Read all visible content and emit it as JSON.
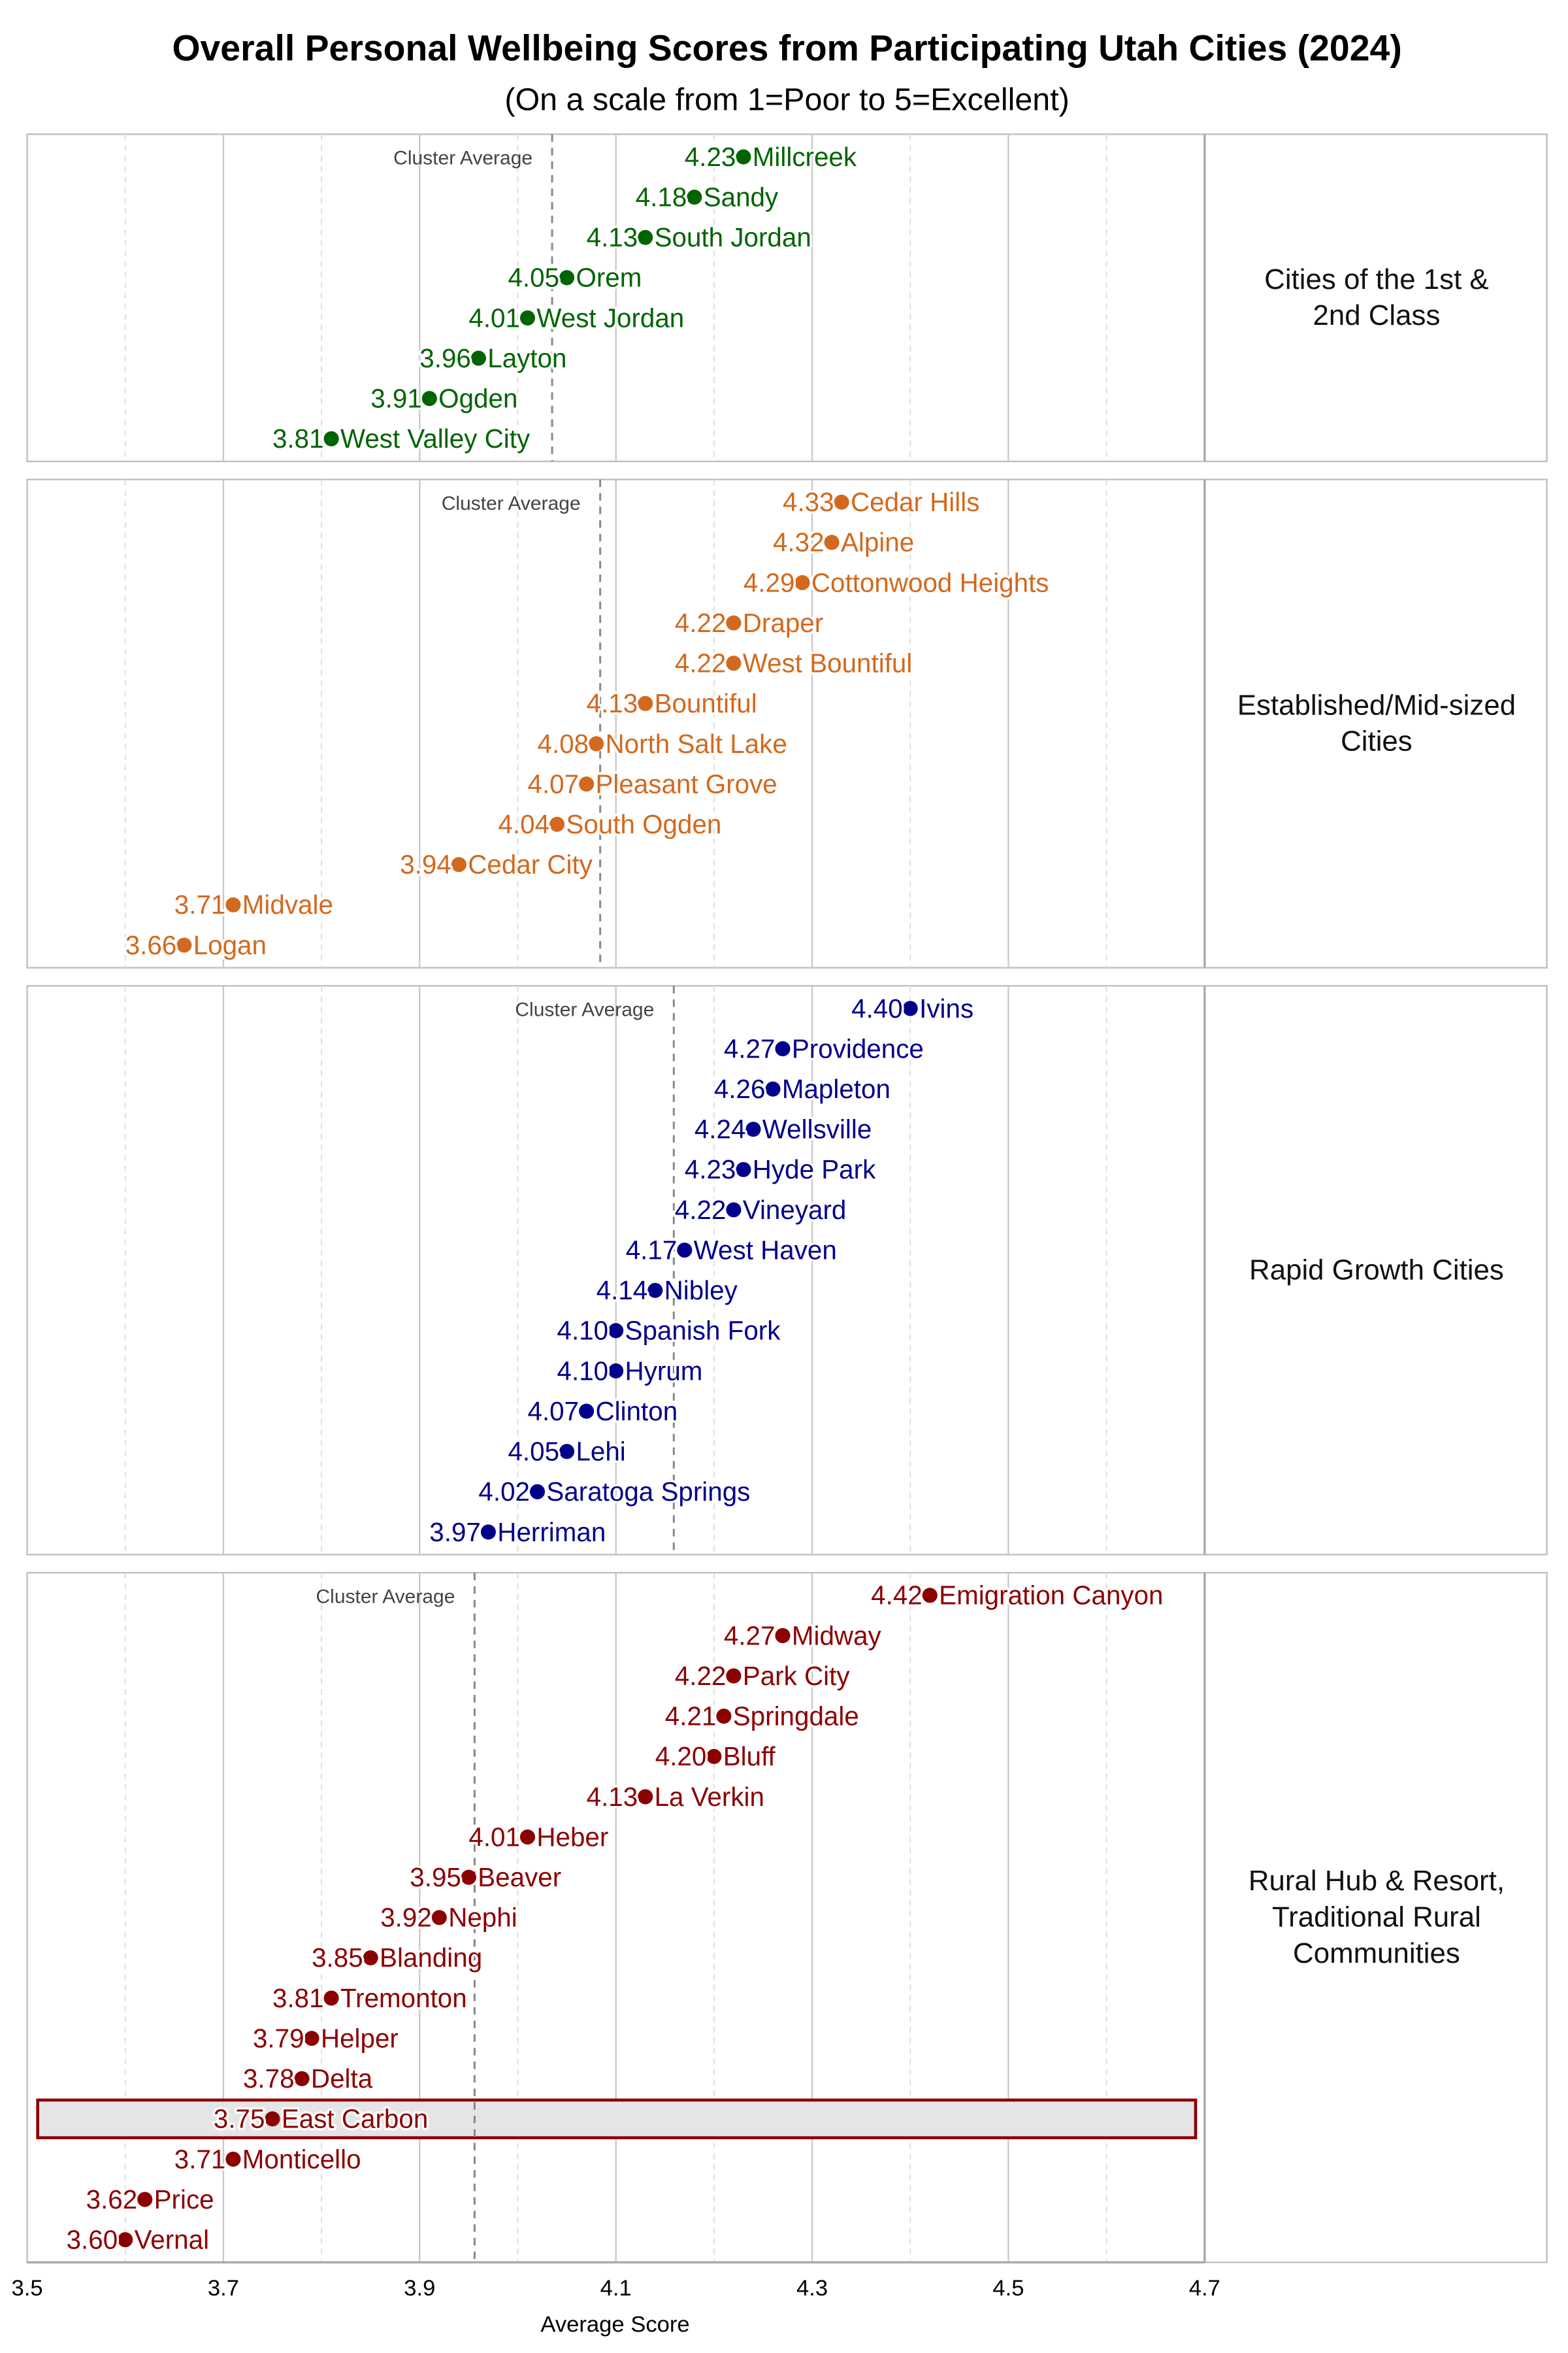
{
  "chart_data": {
    "type": "scatter",
    "title": "Overall Personal Wellbeing Scores from Participating Utah Cities (2024)",
    "subtitle": "(On a scale from 1=Poor to 5=Excellent)",
    "xlabel": "Average Score",
    "xlim": [
      3.5,
      4.7
    ],
    "xticks": [
      "3.5",
      "3.7",
      "3.9",
      "4.1",
      "4.3",
      "4.5",
      "4.7"
    ],
    "grid": true,
    "average_label": "Cluster Average",
    "highlight": "East Carbon",
    "highlight_fill": "#e5e5e5",
    "panels": [
      {
        "label": [
          "Cities of the 1st &",
          "2nd Class"
        ],
        "color": "#006400",
        "cluster_average": 4.035,
        "points": [
          {
            "name": "Millcreek",
            "value": 4.23,
            "label": "4.23"
          },
          {
            "name": "Sandy",
            "value": 4.18,
            "label": "4.18"
          },
          {
            "name": "South Jordan",
            "value": 4.13,
            "label": "4.13"
          },
          {
            "name": "Orem",
            "value": 4.05,
            "label": "4.05"
          },
          {
            "name": "West Jordan",
            "value": 4.01,
            "label": "4.01"
          },
          {
            "name": "Layton",
            "value": 3.96,
            "label": "3.96"
          },
          {
            "name": "Ogden",
            "value": 3.91,
            "label": "3.91"
          },
          {
            "name": "West Valley City",
            "value": 3.81,
            "label": "3.81"
          }
        ]
      },
      {
        "label": [
          "Established/Mid-sized",
          "Cities"
        ],
        "color": "#d2691e",
        "cluster_average": 4.084,
        "points": [
          {
            "name": "Cedar Hills",
            "value": 4.33,
            "label": "4.33"
          },
          {
            "name": "Alpine",
            "value": 4.32,
            "label": "4.32"
          },
          {
            "name": "Cottonwood Heights",
            "value": 4.29,
            "label": "4.29"
          },
          {
            "name": "Draper",
            "value": 4.22,
            "label": "4.22"
          },
          {
            "name": "West Bountiful",
            "value": 4.22,
            "label": "4.22"
          },
          {
            "name": "Bountiful",
            "value": 4.13,
            "label": "4.13"
          },
          {
            "name": "North Salt Lake",
            "value": 4.08,
            "label": "4.08"
          },
          {
            "name": "Pleasant Grove",
            "value": 4.07,
            "label": "4.07"
          },
          {
            "name": "South Ogden",
            "value": 4.04,
            "label": "4.04"
          },
          {
            "name": "Cedar City",
            "value": 3.94,
            "label": "3.94"
          },
          {
            "name": "Midvale",
            "value": 3.71,
            "label": "3.71"
          },
          {
            "name": "Logan",
            "value": 3.66,
            "label": "3.66"
          }
        ]
      },
      {
        "label": [
          "Rapid Growth Cities"
        ],
        "color": "#00008b",
        "cluster_average": 4.159,
        "points": [
          {
            "name": "Ivins",
            "value": 4.4,
            "label": "4.40"
          },
          {
            "name": "Providence",
            "value": 4.27,
            "label": "4.27"
          },
          {
            "name": "Mapleton",
            "value": 4.26,
            "label": "4.26"
          },
          {
            "name": "Wellsville",
            "value": 4.24,
            "label": "4.24"
          },
          {
            "name": "Hyde Park",
            "value": 4.23,
            "label": "4.23"
          },
          {
            "name": "Vineyard",
            "value": 4.22,
            "label": "4.22"
          },
          {
            "name": "West Haven",
            "value": 4.17,
            "label": "4.17"
          },
          {
            "name": "Nibley",
            "value": 4.14,
            "label": "4.14"
          },
          {
            "name": "Spanish Fork",
            "value": 4.1,
            "label": "4.10"
          },
          {
            "name": "Hyrum",
            "value": 4.1,
            "label": "4.10"
          },
          {
            "name": "Clinton",
            "value": 4.07,
            "label": "4.07"
          },
          {
            "name": "Lehi",
            "value": 4.05,
            "label": "4.05"
          },
          {
            "name": "Saratoga Springs",
            "value": 4.02,
            "label": "4.02"
          },
          {
            "name": "Herriman",
            "value": 3.97,
            "label": "3.97"
          }
        ]
      },
      {
        "label": [
          "Rural Hub & Resort,",
          "Traditional Rural",
          "Communities"
        ],
        "color": "#8b0000",
        "cluster_average": 3.956,
        "points": [
          {
            "name": "Emigration Canyon",
            "value": 4.42,
            "label": "4.42"
          },
          {
            "name": "Midway",
            "value": 4.27,
            "label": "4.27"
          },
          {
            "name": "Park City",
            "value": 4.22,
            "label": "4.22"
          },
          {
            "name": "Springdale",
            "value": 4.21,
            "label": "4.21"
          },
          {
            "name": "Bluff",
            "value": 4.2,
            "label": "4.20"
          },
          {
            "name": "La Verkin",
            "value": 4.13,
            "label": "4.13"
          },
          {
            "name": "Heber",
            "value": 4.01,
            "label": "4.01"
          },
          {
            "name": "Beaver",
            "value": 3.95,
            "label": "3.95"
          },
          {
            "name": "Nephi",
            "value": 3.92,
            "label": "3.92"
          },
          {
            "name": "Blanding",
            "value": 3.85,
            "label": "3.85"
          },
          {
            "name": "Tremonton",
            "value": 3.81,
            "label": "3.81"
          },
          {
            "name": "Helper",
            "value": 3.79,
            "label": "3.79"
          },
          {
            "name": "Delta",
            "value": 3.78,
            "label": "3.78"
          },
          {
            "name": "East Carbon",
            "value": 3.75,
            "label": "3.75"
          },
          {
            "name": "Monticello",
            "value": 3.71,
            "label": "3.71"
          },
          {
            "name": "Price",
            "value": 3.62,
            "label": "3.62"
          },
          {
            "name": "Vernal",
            "value": 3.6,
            "label": "3.60"
          }
        ]
      }
    ]
  }
}
